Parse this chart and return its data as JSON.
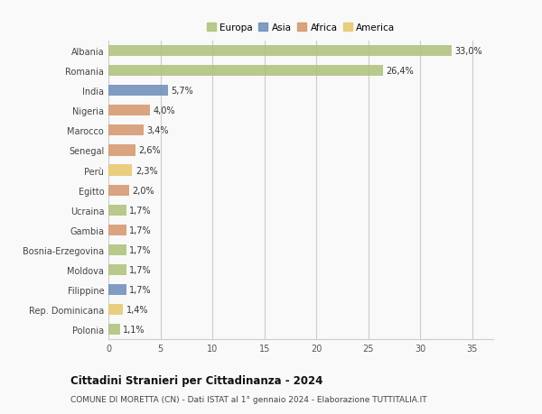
{
  "categories": [
    "Albania",
    "Romania",
    "India",
    "Nigeria",
    "Marocco",
    "Senegal",
    "Perù",
    "Egitto",
    "Ucraina",
    "Gambia",
    "Bosnia-Erzegovina",
    "Moldova",
    "Filippine",
    "Rep. Dominicana",
    "Polonia"
  ],
  "values": [
    33.0,
    26.4,
    5.7,
    4.0,
    3.4,
    2.6,
    2.3,
    2.0,
    1.7,
    1.7,
    1.7,
    1.7,
    1.7,
    1.4,
    1.1
  ],
  "labels": [
    "33,0%",
    "26,4%",
    "5,7%",
    "4,0%",
    "3,4%",
    "2,6%",
    "2,3%",
    "2,0%",
    "1,7%",
    "1,7%",
    "1,7%",
    "1,7%",
    "1,7%",
    "1,4%",
    "1,1%"
  ],
  "continents": [
    "Europa",
    "Europa",
    "Asia",
    "Africa",
    "Africa",
    "Africa",
    "America",
    "Africa",
    "Europa",
    "Africa",
    "Europa",
    "Europa",
    "Asia",
    "America",
    "Europa"
  ],
  "colors": {
    "Europa": "#adc178",
    "Asia": "#6b8cba",
    "Africa": "#d4956a",
    "America": "#e8c76a"
  },
  "xlim": [
    0,
    37
  ],
  "xticks": [
    0,
    5,
    10,
    15,
    20,
    25,
    30,
    35
  ],
  "title": "Cittadini Stranieri per Cittadinanza - 2024",
  "subtitle": "COMUNE DI MORETTA (CN) - Dati ISTAT al 1° gennaio 2024 - Elaborazione TUTTITALIA.IT",
  "background_color": "#f9f9f9",
  "bar_height": 0.55,
  "grid_color": "#cccccc",
  "legend_order": [
    "Europa",
    "Asia",
    "Africa",
    "America"
  ]
}
